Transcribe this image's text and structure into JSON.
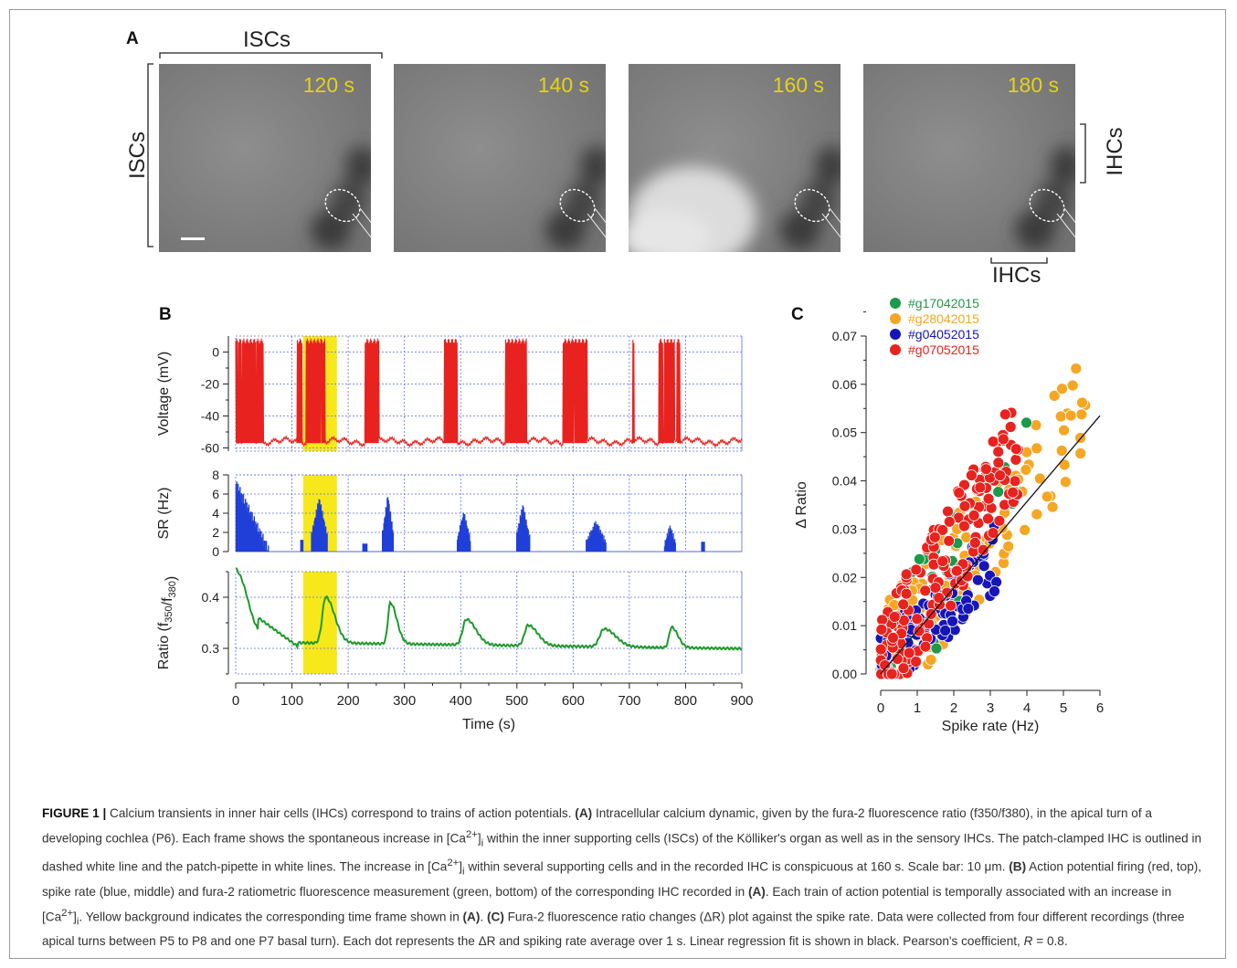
{
  "figure": {
    "panel_a": {
      "letter": "A",
      "label_top": "ISCs",
      "label_left": "ISCs",
      "label_right": "IHCs",
      "label_bottom": "IHCs",
      "frames": [
        {
          "time": "120 s",
          "bright_blob": false
        },
        {
          "time": "140 s",
          "bright_blob": false
        },
        {
          "time": "160 s",
          "bright_blob": true
        },
        {
          "time": "180 s",
          "bright_blob": false
        }
      ]
    },
    "panel_b": {
      "letter": "B",
      "voltage": {
        "ylabel": "Voltage (mV)",
        "ylim": [
          -62,
          10
        ],
        "yticks": [
          "0",
          "-20",
          "-40",
          "-60"
        ],
        "color": "#e8231f"
      },
      "spike_rate": {
        "ylabel": "SR (Hz)",
        "ylim": [
          0,
          8
        ],
        "yticks": [
          "0",
          "2",
          "4",
          "6",
          "8"
        ],
        "color": "#1f3fd8"
      },
      "ratio": {
        "ylabel_main": "Ratio (f",
        "ylabel_sub1": "350",
        "ylabel_mid": "/f",
        "ylabel_sub2": "380",
        "ylabel_end": ")",
        "ylim": [
          0.25,
          0.45
        ],
        "yticks": [
          "0.4",
          "0.3"
        ],
        "color": "#1e9a2b"
      },
      "xlabel": "Time (s)",
      "xticks": [
        "0",
        "100",
        "200",
        "300",
        "400",
        "500",
        "600",
        "700",
        "800",
        "900"
      ],
      "highlight": {
        "start": 120,
        "end": 180,
        "color": "#f7e81c"
      }
    },
    "panel_c": {
      "letter": "C",
      "xlabel": "Spike rate (Hz)",
      "ylabel": "Δ Ratio",
      "xticks": [
        "0",
        "1",
        "2",
        "3",
        "4",
        "5",
        "6"
      ],
      "yticks": [
        "0.00",
        "0.01",
        "0.02",
        "0.03",
        "0.04",
        "0.05",
        "0.06",
        "0.07"
      ],
      "legend": [
        {
          "label": "#g17042015",
          "color": "#1c9a4a"
        },
        {
          "label": "#g28042015",
          "color": "#f5a623"
        },
        {
          "label": "#g04052015",
          "color": "#1616b8"
        },
        {
          "label": "#g07052015",
          "color": "#e8231f"
        }
      ]
    },
    "caption": {
      "title": "FIGURE 1 |",
      "text_1": " Calcium transients in inner hair cells (IHCs) correspond to trains of action potentials. ",
      "ref_a": "(A)",
      "text_2": " Intracellular calcium dynamic, given by the fura-2 fluorescence ratio (f350/f380), in the apical turn of a developing cochlea (P6). Each frame shows the spontaneous increase in [Ca",
      "sup_1": "2+",
      "text_3": "]",
      "sub_1": "i",
      "text_4": " within the inner supporting cells (ISCs) of the Kölliker's organ as well as in the sensory IHCs. The patch-clamped IHC is outlined in dashed white line and the patch-pipette in white lines. The increase in [Ca",
      "sup_2": "2+",
      "text_5": "]",
      "sub_2": "i",
      "text_6": " within several supporting cells and in the recorded IHC is conspicuous at 160 s. Scale bar: 10 μm. ",
      "ref_b": "(B)",
      "text_7": " Action potential firing (red, top), spike rate (blue, middle) and fura-2 ratiometric fluorescence measurement (green, bottom) of the corresponding IHC recorded in ",
      "ref_a2": "(A)",
      "text_8": ". Each train of action potential is temporally associated with an increase in [Ca",
      "sup_3": "2+",
      "text_9": "]",
      "sub_3": "i",
      "text_10": ". Yellow background indicates the corresponding time frame shown in ",
      "ref_a3": "(A)",
      "text_11": ". ",
      "ref_c": "(C)",
      "text_12": " Fura-2 fluorescence ratio changes (ΔR) plot against the spike rate. Data were collected from four different recordings (three apical turns between P5 to P8 and one P7 basal turn). Each dot represents the ΔR and spiking rate average over 1 s. Linear regression fit is shown in black. Pearson's coefficient, ",
      "r_sym": "R",
      "text_13": " = 0.8."
    }
  }
}
